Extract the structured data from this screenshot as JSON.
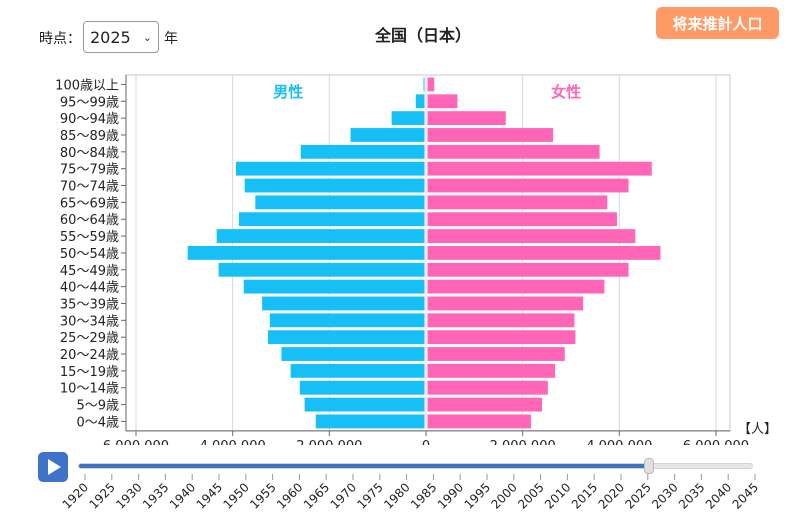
{
  "header": {
    "time_label": "時点：",
    "selected_year": "2025",
    "year_suffix": "年",
    "title": "全国（日本）",
    "projection_button": "将来推計人口"
  },
  "colors": {
    "male": "#17bff7",
    "female": "#ff66b8",
    "accent": "#3f73c7",
    "button": "#ff9a66"
  },
  "chart_data": {
    "type": "bar",
    "orientation": "horizontal-pyramid",
    "categories": [
      "100歳以上",
      "95〜99歳",
      "90〜94歳",
      "85〜89歳",
      "80〜84歳",
      "75〜79歳",
      "70〜74歳",
      "65〜69歳",
      "60〜64歳",
      "55〜59歳",
      "50〜54歳",
      "45〜49歳",
      "40〜44歳",
      "35〜39歳",
      "30〜34歳",
      "25〜29歳",
      "20〜24歳",
      "15〜19歳",
      "10〜14歳",
      "5〜9歳",
      "0〜4歳"
    ],
    "series": [
      {
        "name": "男性",
        "values": [
          20000,
          180000,
          680000,
          1530000,
          2560000,
          3900000,
          3720000,
          3500000,
          3840000,
          4300000,
          4900000,
          4260000,
          3740000,
          3360000,
          3200000,
          3240000,
          2960000,
          2770000,
          2580000,
          2480000,
          2250000
        ]
      },
      {
        "name": "女性",
        "values": [
          140000,
          620000,
          1620000,
          2600000,
          3560000,
          4640000,
          4160000,
          3720000,
          3920000,
          4300000,
          4820000,
          4160000,
          3660000,
          3220000,
          3040000,
          3060000,
          2840000,
          2640000,
          2490000,
          2370000,
          2140000
        ]
      }
    ],
    "xlim": [
      -6000000,
      6000000
    ],
    "xticks": [
      "6,000,000",
      "4,000,000",
      "2,000,000",
      "0",
      "2,000,000",
      "4,000,000",
      "6,000,000"
    ],
    "x_unit": "【人】",
    "grid": true
  },
  "timeline": {
    "years": [
      "1920",
      "1925",
      "1930",
      "1935",
      "1940",
      "1945",
      "1950",
      "1955",
      "1960",
      "1965",
      "1970",
      "1975",
      "1980",
      "1985",
      "1990",
      "1995",
      "2000",
      "2005",
      "2010",
      "2015",
      "2020",
      "2025",
      "2030",
      "2035",
      "2040",
      "2045"
    ],
    "current": "2025"
  }
}
